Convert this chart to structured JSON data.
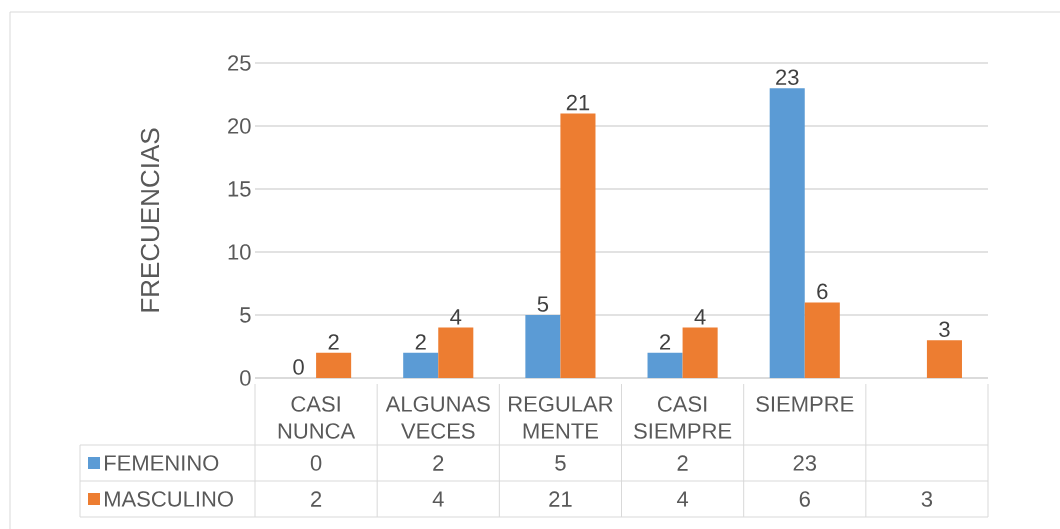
{
  "chart_data": {
    "type": "bar",
    "ylabel": "FRECUENCIAS",
    "categories": [
      "CASI NUNCA",
      "ALGUNAS VECES",
      "REGULAR MENTE",
      "CASI SIEMPRE",
      "SIEMPRE",
      null
    ],
    "series": [
      {
        "name": "FEMENINO",
        "color": "#5b9bd5",
        "values": [
          0,
          2,
          5,
          2,
          23,
          null
        ]
      },
      {
        "name": "MASCULINO",
        "color": "#ed7d31",
        "values": [
          2,
          4,
          21,
          4,
          6,
          3
        ]
      }
    ],
    "ylim": [
      0,
      25
    ],
    "yticks": [
      0,
      5,
      10,
      15,
      20,
      25
    ],
    "grid": "y",
    "legend": "bottom",
    "data_labels": true,
    "annotations": [
      {
        "text": "0",
        "x": "CASI NUNCA",
        "y": 0
      },
      {
        "text": "2",
        "x": "CASI NUNCA",
        "y": 2
      },
      {
        "text": "2",
        "x": "ALGUNAS VECES",
        "y": 2
      },
      {
        "text": "4",
        "x": "ALGUNAS VECES",
        "y": 4
      },
      {
        "text": "5",
        "x": "REGULAR MENTE",
        "y": 5
      },
      {
        "text": "21",
        "x": "REGULAR MENTE",
        "y": 21
      },
      {
        "text": "2",
        "x": "CASI SIEMPRE",
        "y": 2
      },
      {
        "text": "4",
        "x": "CASI SIEMPRE",
        "y": 4
      },
      {
        "text": "23",
        "x": "SIEMPRE",
        "y": 23
      },
      {
        "text": "6",
        "x": "SIEMPRE",
        "y": 6
      },
      {
        "text": "3",
        "y": 3
      }
    ]
  }
}
